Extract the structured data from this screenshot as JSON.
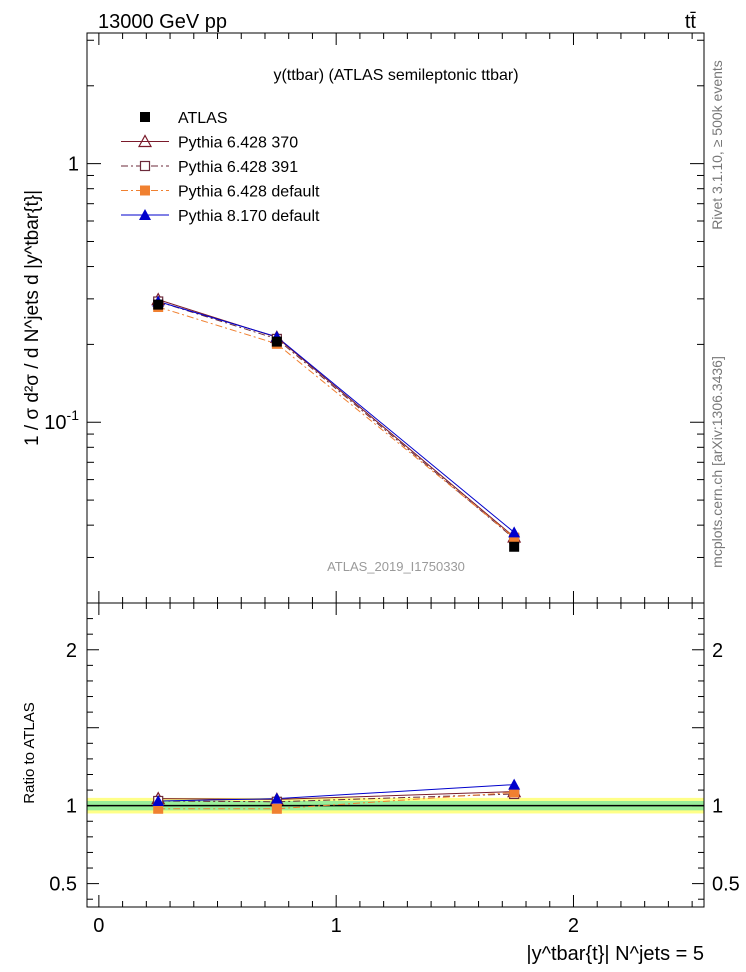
{
  "header": {
    "energy_label": "13000 GeV pp",
    "process_label": "tt̄"
  },
  "side_labels": {
    "rivet": "Rivet 3.1.10, ≥ 500k events",
    "mcplots": "mcplots.cern.ch [arXiv:1306.3436]"
  },
  "chart_data": {
    "type": "line",
    "title": "y(ttbar) (ATLAS semileptonic ttbar)",
    "watermark": "ATLAS_2019_I1750330",
    "ylabel": "1 / σ d²σ / d N^jets d |y^tbar{t}|",
    "xlabel": "|y^tbar{t}| N^jets = 5",
    "ratio_ylabel": "Ratio to ATLAS",
    "xlim": [
      -0.05,
      2.55
    ],
    "ylim": [
      0.02,
      3.2
    ],
    "yscale": "log",
    "ratio_ylim": [
      0.35,
      2.3
    ],
    "x_ticks": [
      "0",
      "1",
      "2"
    ],
    "y_ticks": [
      "1",
      "10^-1"
    ],
    "ratio_ticks": [
      "0.5",
      "1",
      "2"
    ],
    "x": [
      0.25,
      0.75,
      1.75
    ],
    "series": [
      {
        "name": "ATLAS",
        "values": [
          0.285,
          0.205,
          0.033
        ],
        "color": "#000000",
        "marker": "square",
        "role": "data"
      },
      {
        "name": "Pythia 6.428 370",
        "values": [
          0.298,
          0.213,
          0.036
        ],
        "color": "#7a1a2a",
        "marker": "triangle-open",
        "dash": "solid"
      },
      {
        "name": "Pythia 6.428 391",
        "values": [
          0.293,
          0.21,
          0.0355
        ],
        "color": "#6b2a3a",
        "marker": "square-open",
        "dash": "dashdot"
      },
      {
        "name": "Pythia 6.428 default",
        "values": [
          0.279,
          0.201,
          0.0358
        ],
        "color": "#f08030",
        "marker": "square",
        "dash": "dashdot"
      },
      {
        "name": "Pythia 8.170 default",
        "values": [
          0.293,
          0.214,
          0.0375
        ],
        "color": "#0000cc",
        "marker": "triangle",
        "dash": "solid"
      }
    ],
    "ratio_series": [
      {
        "name": "Pythia 6.428 370",
        "values": [
          1.045,
          1.04,
          1.09
        ]
      },
      {
        "name": "Pythia 6.428 391",
        "values": [
          1.03,
          1.025,
          1.075
        ]
      },
      {
        "name": "Pythia 6.428 default",
        "values": [
          0.98,
          0.98,
          1.085
        ]
      },
      {
        "name": "Pythia 8.170 default",
        "values": [
          1.03,
          1.045,
          1.135
        ]
      }
    ],
    "ratio_bands": {
      "inner": [
        0.97,
        1.03
      ],
      "outer": [
        0.95,
        1.05
      ]
    },
    "legend_position": "top-left"
  }
}
